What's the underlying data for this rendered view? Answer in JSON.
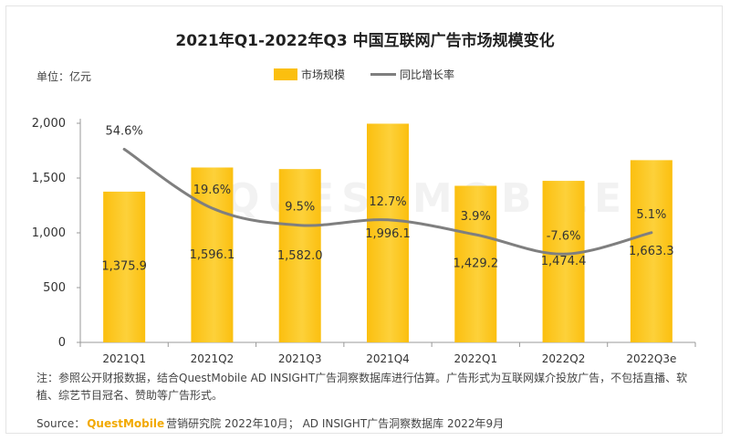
{
  "title": "2021年Q1-2022年Q3 中国互联网广告市场规模变化",
  "unit_label": "单位：亿元",
  "legend": {
    "bar": "市场规模",
    "line": "同比增长率"
  },
  "colors": {
    "bar": "#fbbf0f",
    "line": "#7f7f7f",
    "brand": "#f2a900"
  },
  "watermark": "QUESTMOBILE",
  "note": "注：参照公开财报数据，结合QuestMobile AD INSIGHT广告洞察数据库进行估算。广告形式为互联网媒介投放广告，不包括直播、软植、综艺节目冠名、赞助等广告形式。",
  "source": {
    "prefix": "Source：",
    "brand": "QuestMobile",
    "suffix": "营销研究院 2022年10月； AD INSIGHT广告洞察数据库 2022年9月"
  },
  "chart_data": {
    "type": "bar",
    "categories": [
      "2021Q1",
      "2021Q2",
      "2021Q3",
      "2021Q4",
      "2022Q1",
      "2022Q2",
      "2022Q3e"
    ],
    "ylim": [
      0,
      2000
    ],
    "yticks": [
      0,
      500,
      1000,
      1500,
      2000
    ],
    "ytick_labels": [
      "0",
      "500",
      "1,000",
      "1,500",
      "2,000"
    ],
    "grid": false,
    "legend_position": "top-center",
    "series": [
      {
        "name": "市场规模",
        "type": "bar",
        "values": [
          1375.9,
          1596.1,
          1582.0,
          1996.1,
          1429.2,
          1474.4,
          1663.3
        ],
        "labels": [
          "1,375.9",
          "1,596.1",
          "1,582.0",
          "1,996.1",
          "1,429.2",
          "1,474.4",
          "1,663.3"
        ]
      },
      {
        "name": "同比增长率",
        "type": "line",
        "values": [
          54.6,
          19.6,
          9.5,
          12.7,
          3.9,
          -7.6,
          5.1
        ],
        "labels": [
          "54.6%",
          "19.6%",
          "9.5%",
          "12.7%",
          "3.9%",
          "-7.6%",
          "5.1%"
        ]
      }
    ]
  }
}
